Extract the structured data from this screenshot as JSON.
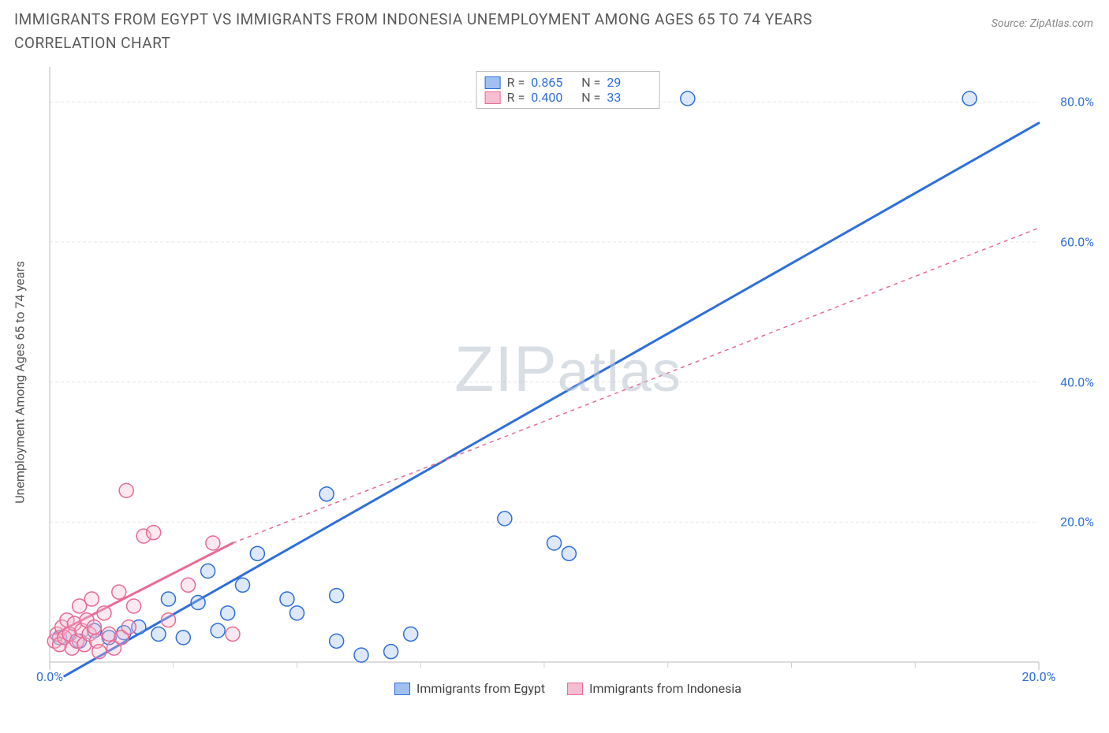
{
  "title": "IMMIGRANTS FROM EGYPT VS IMMIGRANTS FROM INDONESIA UNEMPLOYMENT AMONG AGES 65 TO 74 YEARS CORRELATION CHART",
  "source": "Source: ZipAtlas.com",
  "watermark": {
    "left": "ZIP",
    "right": "atlas"
  },
  "ylabel": "Unemployment Among Ages 65 to 74 years",
  "chart": {
    "type": "scatter",
    "xlim": [
      0,
      20
    ],
    "ylim": [
      0,
      85
    ],
    "xticks": [
      0,
      20
    ],
    "xtick_labels": [
      "0.0%",
      "20.0%"
    ],
    "yticks": [
      20,
      40,
      60,
      80
    ],
    "ytick_labels": [
      "20.0%",
      "40.0%",
      "60.0%",
      "80.0%"
    ],
    "grid_color": "#e6e6e6",
    "axis_color": "#d0d0d0",
    "background_color": "#ffffff",
    "marker_radius": 9,
    "marker_stroke_width": 1.5,
    "marker_fill_opacity": 0.35,
    "line_width_solid": 3,
    "line_width_dash": 1.5,
    "x_minor_ticks": [
      2.5,
      5,
      7.5,
      10,
      12.5,
      15,
      17.5
    ],
    "series": [
      {
        "name": "Immigrants from Egypt",
        "color_stroke": "#2e6fdb",
        "color_fill": "#9fc0f0",
        "R": "0.865",
        "N": "29",
        "trend_solid": [
          [
            0.3,
            -2
          ],
          [
            20,
            77
          ]
        ],
        "points": [
          [
            0.2,
            3.5
          ],
          [
            0.4,
            4
          ],
          [
            0.6,
            3
          ],
          [
            0.9,
            4.5
          ],
          [
            1.2,
            3.5
          ],
          [
            1.5,
            4.2
          ],
          [
            1.8,
            5
          ],
          [
            2.2,
            4
          ],
          [
            2.4,
            9
          ],
          [
            2.7,
            3.5
          ],
          [
            3.0,
            8.5
          ],
          [
            3.2,
            13
          ],
          [
            3.4,
            4.5
          ],
          [
            3.6,
            7
          ],
          [
            3.9,
            11
          ],
          [
            4.2,
            15.5
          ],
          [
            4.8,
            9
          ],
          [
            5.0,
            7
          ],
          [
            5.6,
            24
          ],
          [
            5.8,
            3
          ],
          [
            5.8,
            9.5
          ],
          [
            6.3,
            1
          ],
          [
            6.9,
            1.5
          ],
          [
            7.3,
            4
          ],
          [
            9.2,
            20.5
          ],
          [
            10.2,
            17
          ],
          [
            10.5,
            15.5
          ],
          [
            12.9,
            80.5
          ],
          [
            18.6,
            80.5
          ]
        ]
      },
      {
        "name": "Immigrants from Indonesia",
        "color_stroke": "#e86b94",
        "color_fill": "#f6bdd0",
        "R": "0.400",
        "N": "33",
        "trend_solid": [
          [
            0.1,
            4
          ],
          [
            3.7,
            17
          ]
        ],
        "trend_dash": [
          [
            3.7,
            17
          ],
          [
            20,
            62
          ]
        ],
        "points": [
          [
            0.1,
            3
          ],
          [
            0.15,
            4
          ],
          [
            0.2,
            2.5
          ],
          [
            0.25,
            5
          ],
          [
            0.3,
            3.5
          ],
          [
            0.35,
            6
          ],
          [
            0.4,
            4
          ],
          [
            0.45,
            2
          ],
          [
            0.5,
            5.5
          ],
          [
            0.55,
            3
          ],
          [
            0.6,
            8
          ],
          [
            0.65,
            4.5
          ],
          [
            0.7,
            2.5
          ],
          [
            0.75,
            6
          ],
          [
            0.8,
            4
          ],
          [
            0.85,
            9
          ],
          [
            0.9,
            5
          ],
          [
            0.95,
            3
          ],
          [
            1.0,
            1.5
          ],
          [
            1.1,
            7
          ],
          [
            1.2,
            4
          ],
          [
            1.3,
            2
          ],
          [
            1.4,
            10
          ],
          [
            1.45,
            3.5
          ],
          [
            1.55,
            24.5
          ],
          [
            1.6,
            5
          ],
          [
            1.7,
            8
          ],
          [
            1.9,
            18
          ],
          [
            2.1,
            18.5
          ],
          [
            2.4,
            6
          ],
          [
            2.8,
            11
          ],
          [
            3.3,
            17
          ],
          [
            3.7,
            4
          ]
        ]
      }
    ]
  },
  "legend_bottom": [
    {
      "label": "Immigrants from Egypt",
      "stroke": "#2e6fdb",
      "fill": "#9fc0f0"
    },
    {
      "label": "Immigrants from Indonesia",
      "stroke": "#e86b94",
      "fill": "#f6bdd0"
    }
  ]
}
